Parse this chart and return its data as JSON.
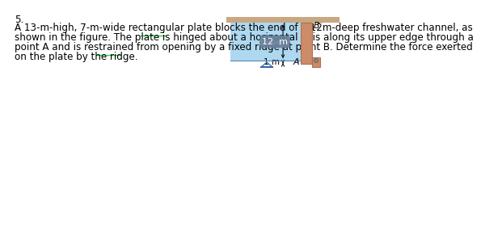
{
  "bg_color": "#ffffff",
  "text_color": "#000000",
  "problem_number": "5.",
  "line1": "A 13-m-high, 7-m-wide rectangular plate blocks the end of a 12m-deep freshwater channel, as",
  "line2": "shown in the figure. The plate is hinged about a horizontal axis along its upper edge through a",
  "line3": "point A and is restrained from opening by a fixed ridge at point B. Determine the force exerted",
  "line4": "on the plate by the ridge.",
  "water_color": "#aed8f0",
  "plate_color": "#cd8b6a",
  "plate_edge_color": "#b07050",
  "ground_color": "#c8a882",
  "label_bg_color": "#6a7f9a",
  "label_text_color": "#ffffff",
  "underline_color": "#22cc44",
  "point_A_label": "A",
  "point_B_label": "B",
  "label_1m": "1 m",
  "label_12m": "12  m",
  "arrow_color": "#000000",
  "water_line_color": "#5588bb"
}
